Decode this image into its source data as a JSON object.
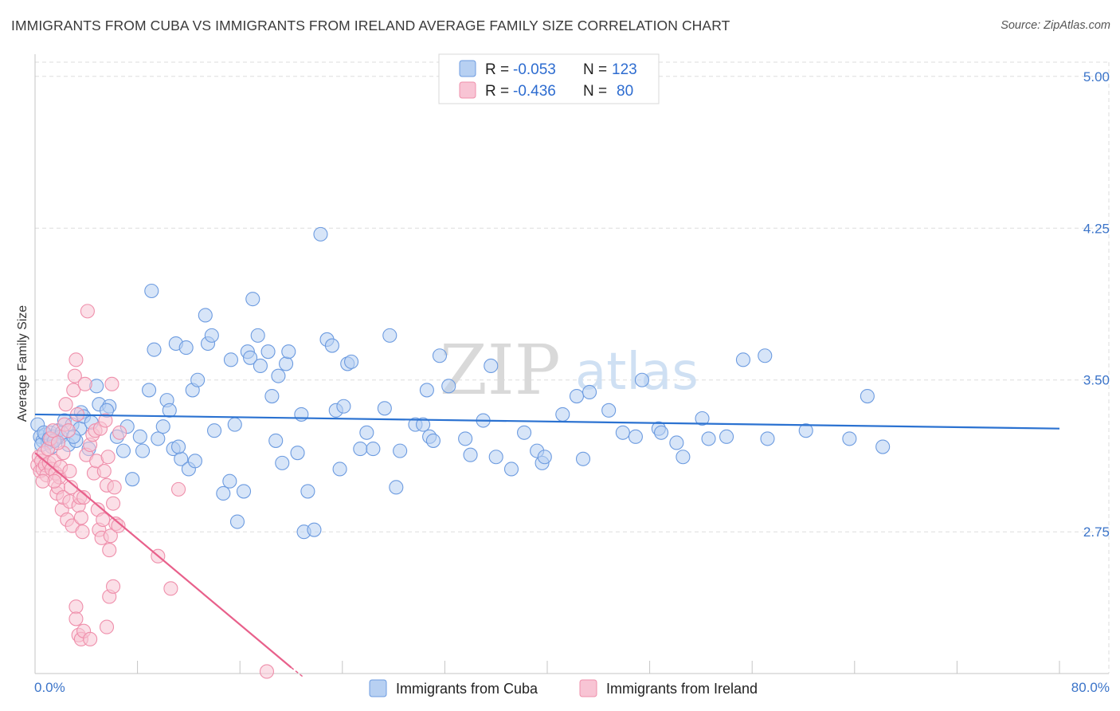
{
  "title": "IMMIGRANTS FROM CUBA VS IMMIGRANTS FROM IRELAND AVERAGE FAMILY SIZE CORRELATION CHART",
  "source": "Source: ZipAtlas.com",
  "watermark": {
    "part1": "ZIP",
    "part2": "atlas"
  },
  "colors": {
    "cuba_fill": "#b7d0f2",
    "cuba_stroke": "#6c9be0",
    "cuba_line": "#2b72d1",
    "ireland_fill": "#f8c4d4",
    "ireland_stroke": "#ef8fab",
    "ireland_line": "#e8608b",
    "grid": "#dddddd",
    "axis_text": "#3b74c9"
  },
  "legend": {
    "rows": [
      {
        "r_label": "R =",
        "r_value": "-0.053",
        "n_label": "N =",
        "n_value": "123"
      },
      {
        "r_label": "R =",
        "r_value": "-0.436",
        "n_label": "N =",
        "n_value": "80"
      }
    ]
  },
  "bottom_legend": [
    "Immigrants from Cuba",
    "Immigrants from Ireland"
  ],
  "chart_data": {
    "type": "scatter",
    "title": "IMMIGRANTS FROM CUBA VS IMMIGRANTS FROM IRELAND AVERAGE FAMILY SIZE CORRELATION CHART",
    "xlabel": "",
    "ylabel": "Average Family Size",
    "xlim": [
      0,
      80
    ],
    "ylim": [
      2.05,
      5.07
    ],
    "x_tick_labels": [
      "0.0%",
      "80.0%"
    ],
    "y_ticks": [
      2.75,
      3.5,
      4.25,
      5.0
    ],
    "y_tick_labels": [
      "2.75",
      "3.50",
      "4.25",
      "5.00"
    ],
    "grid": true,
    "legend_position": "top-center",
    "series": [
      {
        "name": "Immigrants from Cuba",
        "r": -0.053,
        "n": 123,
        "trend": {
          "x": [
            0,
            80
          ],
          "y": [
            3.33,
            3.26
          ]
        },
        "points": [
          [
            0.2,
            3.28
          ],
          [
            0.4,
            3.22
          ],
          [
            0.6,
            3.2
          ],
          [
            0.8,
            3.23
          ],
          [
            1.0,
            3.19
          ],
          [
            1.2,
            3.24
          ],
          [
            1.4,
            3.22
          ],
          [
            1.6,
            3.21
          ],
          [
            1.8,
            3.25
          ],
          [
            2.0,
            3.22
          ],
          [
            2.3,
            3.3
          ],
          [
            2.6,
            3.18
          ],
          [
            2.9,
            3.28
          ],
          [
            3.2,
            3.2
          ],
          [
            3.5,
            3.26
          ],
          [
            0.5,
            3.18
          ],
          [
            0.7,
            3.24
          ],
          [
            1.1,
            3.21
          ],
          [
            1.3,
            3.17
          ],
          [
            2.1,
            3.24
          ],
          [
            3.6,
            3.34
          ],
          [
            3.8,
            3.32
          ],
          [
            4.4,
            3.29
          ],
          [
            4.2,
            3.16
          ],
          [
            5.0,
            3.38
          ],
          [
            4.8,
            3.47
          ],
          [
            5.8,
            3.37
          ],
          [
            5.6,
            3.35
          ],
          [
            6.4,
            3.22
          ],
          [
            6.9,
            3.15
          ],
          [
            7.2,
            3.27
          ],
          [
            7.6,
            3.01
          ],
          [
            8.2,
            3.22
          ],
          [
            8.4,
            3.15
          ],
          [
            8.9,
            3.45
          ],
          [
            9.1,
            3.94
          ],
          [
            9.3,
            3.65
          ],
          [
            9.6,
            3.21
          ],
          [
            10.0,
            3.27
          ],
          [
            10.3,
            3.4
          ],
          [
            10.5,
            3.35
          ],
          [
            10.8,
            3.16
          ],
          [
            11.0,
            3.68
          ],
          [
            11.4,
            3.11
          ],
          [
            11.2,
            3.17
          ],
          [
            11.8,
            3.66
          ],
          [
            12.0,
            3.06
          ],
          [
            12.3,
            3.45
          ],
          [
            12.5,
            3.1
          ],
          [
            12.7,
            3.5
          ],
          [
            13.3,
            3.82
          ],
          [
            13.5,
            3.68
          ],
          [
            13.8,
            3.72
          ],
          [
            14.0,
            3.25
          ],
          [
            14.7,
            2.94
          ],
          [
            15.2,
            3.0
          ],
          [
            15.3,
            3.6
          ],
          [
            15.6,
            3.28
          ],
          [
            15.8,
            2.8
          ],
          [
            16.3,
            2.95
          ],
          [
            16.6,
            3.64
          ],
          [
            16.8,
            3.61
          ],
          [
            17.0,
            3.9
          ],
          [
            17.4,
            3.72
          ],
          [
            17.6,
            3.57
          ],
          [
            18.2,
            3.64
          ],
          [
            18.5,
            3.42
          ],
          [
            18.8,
            3.2
          ],
          [
            19.0,
            3.52
          ],
          [
            19.3,
            3.09
          ],
          [
            19.6,
            3.58
          ],
          [
            19.8,
            3.64
          ],
          [
            20.5,
            3.14
          ],
          [
            20.8,
            3.33
          ],
          [
            21.0,
            2.75
          ],
          [
            21.3,
            2.95
          ],
          [
            21.8,
            2.76
          ],
          [
            22.3,
            4.22
          ],
          [
            22.8,
            3.7
          ],
          [
            23.2,
            3.67
          ],
          [
            23.5,
            3.35
          ],
          [
            23.8,
            3.06
          ],
          [
            24.1,
            3.37
          ],
          [
            24.4,
            3.58
          ],
          [
            24.7,
            3.59
          ],
          [
            25.4,
            3.16
          ],
          [
            25.9,
            3.24
          ],
          [
            26.4,
            3.16
          ],
          [
            27.3,
            3.36
          ],
          [
            27.7,
            3.72
          ],
          [
            28.2,
            2.97
          ],
          [
            28.5,
            3.15
          ],
          [
            29.7,
            3.28
          ],
          [
            30.3,
            3.28
          ],
          [
            30.6,
            3.45
          ],
          [
            30.8,
            3.22
          ],
          [
            31.1,
            3.2
          ],
          [
            31.6,
            3.62
          ],
          [
            32.3,
            3.47
          ],
          [
            33.6,
            3.21
          ],
          [
            34.0,
            3.13
          ],
          [
            35.0,
            3.3
          ],
          [
            35.6,
            3.57
          ],
          [
            36.0,
            3.12
          ],
          [
            37.2,
            3.06
          ],
          [
            38.2,
            3.24
          ],
          [
            39.2,
            3.15
          ],
          [
            39.6,
            3.09
          ],
          [
            39.8,
            3.12
          ],
          [
            41.2,
            3.33
          ],
          [
            42.3,
            3.42
          ],
          [
            42.8,
            3.11
          ],
          [
            43.3,
            3.44
          ],
          [
            44.8,
            3.35
          ],
          [
            45.9,
            3.24
          ],
          [
            46.9,
            3.22
          ],
          [
            47.4,
            3.5
          ],
          [
            48.7,
            3.26
          ],
          [
            48.9,
            3.24
          ],
          [
            50.1,
            3.19
          ],
          [
            50.6,
            3.12
          ],
          [
            52.1,
            3.31
          ],
          [
            52.6,
            3.21
          ],
          [
            54.0,
            3.22
          ],
          [
            55.3,
            3.6
          ],
          [
            57.0,
            3.62
          ],
          [
            57.2,
            3.21
          ],
          [
            60.2,
            3.25
          ],
          [
            63.6,
            3.21
          ],
          [
            65.0,
            3.42
          ],
          [
            66.2,
            3.17
          ],
          [
            3.0,
            3.22
          ],
          [
            1.5,
            3.2
          ]
        ]
      },
      {
        "name": "Immigrants from Ireland",
        "r": -0.436,
        "n": 80,
        "trend": {
          "x": [
            0,
            20
          ],
          "y": [
            3.14,
            2.08
          ],
          "dash_to": [
            21,
            2.03
          ]
        },
        "points": [
          [
            0.2,
            3.08
          ],
          [
            0.3,
            3.12
          ],
          [
            0.4,
            3.05
          ],
          [
            0.5,
            3.1
          ],
          [
            0.6,
            3.06
          ],
          [
            0.7,
            3.14
          ],
          [
            0.8,
            3.08
          ],
          [
            0.9,
            3.03
          ],
          [
            1.0,
            3.16
          ],
          [
            1.1,
            3.09
          ],
          [
            1.2,
            3.21
          ],
          [
            1.3,
            3.06
          ],
          [
            1.4,
            3.25
          ],
          [
            1.5,
            3.1
          ],
          [
            1.6,
            3.04
          ],
          [
            1.7,
            2.94
          ],
          [
            1.8,
            2.97
          ],
          [
            1.9,
            3.02
          ],
          [
            2.0,
            3.07
          ],
          [
            2.1,
            2.86
          ],
          [
            2.2,
            2.92
          ],
          [
            2.3,
            3.28
          ],
          [
            2.4,
            3.38
          ],
          [
            2.5,
            2.81
          ],
          [
            2.6,
            3.25
          ],
          [
            2.7,
            2.9
          ],
          [
            2.8,
            2.97
          ],
          [
            2.9,
            2.78
          ],
          [
            3.0,
            3.45
          ],
          [
            3.1,
            3.52
          ],
          [
            3.2,
            3.6
          ],
          [
            3.3,
            3.33
          ],
          [
            3.4,
            2.88
          ],
          [
            3.5,
            2.92
          ],
          [
            3.6,
            2.82
          ],
          [
            3.7,
            2.75
          ],
          [
            3.8,
            2.92
          ],
          [
            3.9,
            3.48
          ],
          [
            4.0,
            3.13
          ],
          [
            4.1,
            3.84
          ],
          [
            4.3,
            3.18
          ],
          [
            4.5,
            3.23
          ],
          [
            4.6,
            3.04
          ],
          [
            4.7,
            3.25
          ],
          [
            4.8,
            3.1
          ],
          [
            4.9,
            2.86
          ],
          [
            5.0,
            2.76
          ],
          [
            5.1,
            3.26
          ],
          [
            5.2,
            2.72
          ],
          [
            5.3,
            2.81
          ],
          [
            5.4,
            3.05
          ],
          [
            5.5,
            3.3
          ],
          [
            5.6,
            2.98
          ],
          [
            5.7,
            3.12
          ],
          [
            5.8,
            2.66
          ],
          [
            5.9,
            2.73
          ],
          [
            6.0,
            3.48
          ],
          [
            6.1,
            2.89
          ],
          [
            6.2,
            2.97
          ],
          [
            6.3,
            2.79
          ],
          [
            6.5,
            2.78
          ],
          [
            6.6,
            3.24
          ],
          [
            3.2,
            2.38
          ],
          [
            3.4,
            2.24
          ],
          [
            3.6,
            2.22
          ],
          [
            3.8,
            2.26
          ],
          [
            4.3,
            2.22
          ],
          [
            5.6,
            2.28
          ],
          [
            5.8,
            2.43
          ],
          [
            6.1,
            2.48
          ],
          [
            3.2,
            2.32
          ],
          [
            9.6,
            2.63
          ],
          [
            10.6,
            2.47
          ],
          [
            11.2,
            2.96
          ],
          [
            18.1,
            2.06
          ],
          [
            1.5,
            3.0
          ],
          [
            2.2,
            3.14
          ],
          [
            2.7,
            3.05
          ],
          [
            1.8,
            3.19
          ],
          [
            0.6,
            3.0
          ]
        ]
      }
    ]
  }
}
